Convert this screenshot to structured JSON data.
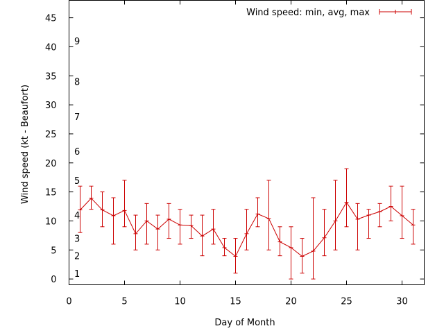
{
  "chart_data": {
    "type": "line",
    "xlabel": "Day of Month",
    "ylabel": "Wind speed (kt - Beaufort)",
    "xlim": [
      0,
      32
    ],
    "ylim": [
      -1,
      48
    ],
    "x_ticks": [
      0,
      5,
      10,
      15,
      20,
      25,
      30
    ],
    "y_ticks": [
      0,
      5,
      10,
      15,
      20,
      25,
      30,
      35,
      40,
      45
    ],
    "beaufort_labels": [
      {
        "label": "1",
        "y": 1
      },
      {
        "label": "2",
        "y": 4
      },
      {
        "label": "3",
        "y": 7
      },
      {
        "label": "4",
        "y": 11
      },
      {
        "label": "5",
        "y": 17
      },
      {
        "label": "6",
        "y": 22
      },
      {
        "label": "7",
        "y": 28
      },
      {
        "label": "8",
        "y": 34
      },
      {
        "label": "9",
        "y": 41
      }
    ],
    "legend": {
      "label": "Wind speed: min, avg, max",
      "position": "top-right"
    },
    "series": [
      {
        "name": "Wind speed: min, avg, max",
        "color": "#cc0000",
        "x": [
          1,
          2,
          3,
          4,
          5,
          6,
          7,
          8,
          9,
          10,
          11,
          12,
          13,
          14,
          15,
          16,
          17,
          18,
          19,
          20,
          21,
          22,
          23,
          24,
          25,
          26,
          27,
          28,
          29,
          30,
          31
        ],
        "avg": [
          11.9,
          13.9,
          11.9,
          10.9,
          11.8,
          7.8,
          10.0,
          8.6,
          10.3,
          9.3,
          9.2,
          7.4,
          8.6,
          5.4,
          3.9,
          7.8,
          11.2,
          10.4,
          6.4,
          5.4,
          3.9,
          4.8,
          7.1,
          10.0,
          13.2,
          10.3,
          11.0,
          11.6,
          12.5,
          10.9,
          9.3
        ],
        "min": [
          8,
          12,
          9,
          6,
          9,
          5,
          6,
          5,
          7,
          6,
          7,
          4,
          6,
          4,
          1,
          5,
          9,
          5,
          4,
          0,
          1,
          0,
          4,
          5,
          9,
          5,
          7,
          9,
          10,
          7,
          6
        ],
        "max": [
          16,
          16,
          15,
          14,
          17,
          11,
          13,
          11,
          13,
          12,
          11,
          11,
          12,
          7,
          7,
          12,
          14,
          17,
          9,
          9,
          7,
          14,
          12,
          17,
          19,
          13,
          12,
          13,
          16,
          16,
          12
        ]
      }
    ]
  }
}
